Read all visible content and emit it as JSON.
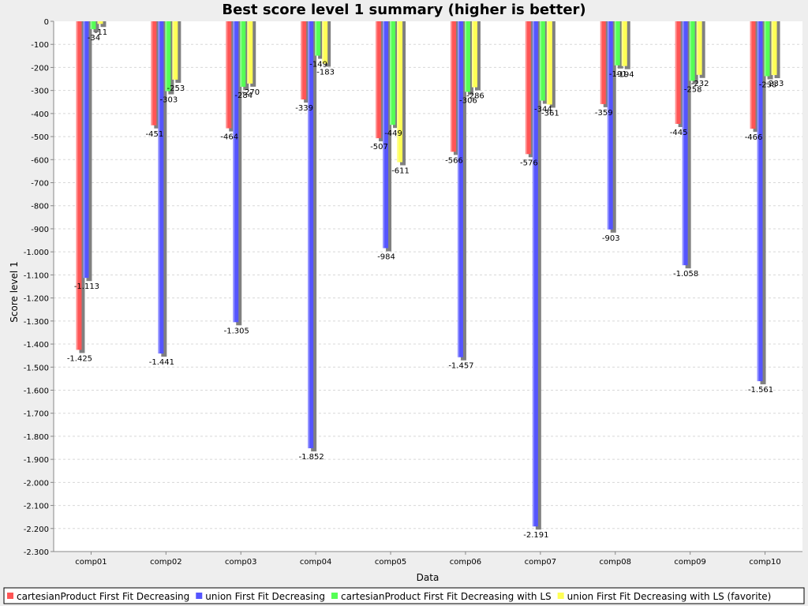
{
  "chart_data": {
    "type": "bar",
    "title": "Best score level 1 summary (higher is better)",
    "xlabel": "Data",
    "ylabel": "Score level 1",
    "ylim": [
      -2300,
      0
    ],
    "ytick_step": 100,
    "grid": true,
    "legend_position": "bottom",
    "categories": [
      "comp01",
      "comp02",
      "comp03",
      "comp04",
      "comp05",
      "comp06",
      "comp07",
      "comp08",
      "comp09",
      "comp10"
    ],
    "series": [
      {
        "name": "cartesianProduct First Fit Decreasing",
        "color": "#ff5555",
        "values": [
          -1425,
          -451,
          -464,
          -339,
          -507,
          -566,
          -576,
          -359,
          -445,
          -466
        ]
      },
      {
        "name": "union First Fit Decreasing",
        "color": "#5555ff",
        "values": [
          -1113,
          -1441,
          -1305,
          -1852,
          -984,
          -1457,
          -2191,
          -903,
          -1058,
          -1561
        ]
      },
      {
        "name": "cartesianProduct First Fit Decreasing with LS",
        "color": "#55ff55",
        "values": [
          -34,
          -303,
          -284,
          -149,
          -449,
          -306,
          -344,
          -191,
          -258,
          -238
        ]
      },
      {
        "name": "union First Fit Decreasing with LS (favorite)",
        "color": "#ffff55",
        "values": [
          -11,
          -253,
          -270,
          -183,
          -611,
          -286,
          -361,
          -194,
          -232,
          -233
        ]
      }
    ],
    "data_labels": [
      [
        "-1.425",
        "-451",
        "-464",
        "-339",
        "-507",
        "-566",
        "-576",
        "-359",
        "-445",
        "-466"
      ],
      [
        "-1.113",
        "-1.441",
        "-1.305",
        "-1.852",
        "-984",
        "-1.457",
        "-2.191",
        "-903",
        "-1.058",
        "-1.561"
      ],
      [
        "-34",
        "-303",
        "-284",
        "-149",
        "-449",
        "-306",
        "-344",
        "-191",
        "-258",
        "-238"
      ],
      [
        "-11",
        "-253",
        "-270",
        "-183",
        "-611",
        "-286",
        "-361",
        "-194",
        "-232",
        "-233"
      ]
    ]
  }
}
